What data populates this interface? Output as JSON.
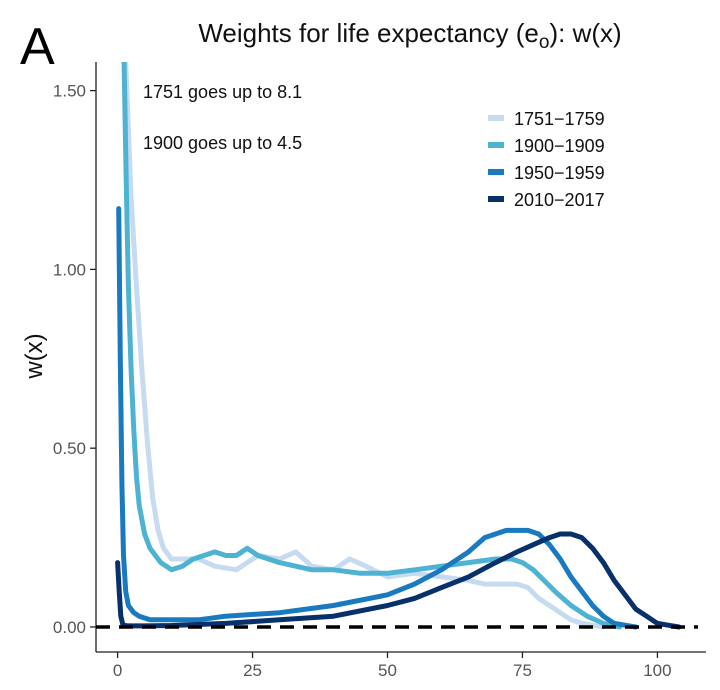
{
  "panel_label": "A",
  "chart_data": {
    "type": "line",
    "title_main": "Weights for life expectancy (e",
    "title_sub": "o",
    "title_tail": "): w(x)",
    "xlabel": "",
    "ylabel": "w(x)",
    "xlim": [
      -4,
      109
    ],
    "ylim": [
      -0.07,
      1.58
    ],
    "xticks": [
      0,
      25,
      50,
      75,
      100
    ],
    "yticks": [
      0.0,
      0.5,
      1.0,
      1.5
    ],
    "ytick_labels": [
      "0.00",
      "0.50",
      "1.00",
      "1.50"
    ],
    "grid": false,
    "legend_position": "top-right",
    "reference_line": {
      "y": 0,
      "style": "dashed",
      "color": "#000000"
    },
    "annotations": [
      "1751 goes up to 8.1",
      "1900 goes up to 4.5"
    ],
    "series": [
      {
        "name": "1751−1759",
        "color": "#c6dbef",
        "x": [
          1.5,
          2.5,
          3.5,
          4.5,
          5.5,
          6.5,
          7.5,
          8.5,
          10,
          12,
          15,
          18,
          22,
          26,
          30,
          33,
          36,
          40,
          43,
          46,
          50,
          55,
          60,
          65,
          68,
          70,
          72,
          74,
          76,
          78,
          80,
          82,
          84,
          86,
          88,
          90
        ],
        "y": [
          1.58,
          1.2,
          0.95,
          0.72,
          0.52,
          0.36,
          0.27,
          0.22,
          0.19,
          0.19,
          0.19,
          0.17,
          0.16,
          0.2,
          0.19,
          0.21,
          0.17,
          0.16,
          0.19,
          0.17,
          0.14,
          0.15,
          0.14,
          0.13,
          0.12,
          0.12,
          0.12,
          0.12,
          0.11,
          0.08,
          0.06,
          0.04,
          0.02,
          0.01,
          0.005,
          0.0
        ]
      },
      {
        "name": "1900−1909",
        "color": "#4eb3d3",
        "x": [
          1.2,
          1.6,
          2.0,
          2.5,
          3.0,
          3.5,
          4.0,
          5.0,
          6.0,
          7.0,
          8.0,
          10,
          12,
          14,
          16,
          18,
          20,
          22,
          24,
          26,
          30,
          33,
          36,
          40,
          45,
          50,
          55,
          60,
          65,
          70,
          73,
          75,
          77,
          79,
          81,
          84,
          87,
          90,
          93
        ],
        "y": [
          1.58,
          1.25,
          0.95,
          0.72,
          0.55,
          0.42,
          0.34,
          0.26,
          0.22,
          0.2,
          0.18,
          0.16,
          0.17,
          0.19,
          0.2,
          0.21,
          0.2,
          0.2,
          0.22,
          0.2,
          0.18,
          0.17,
          0.16,
          0.16,
          0.15,
          0.15,
          0.16,
          0.17,
          0.18,
          0.19,
          0.19,
          0.18,
          0.16,
          0.13,
          0.1,
          0.06,
          0.03,
          0.01,
          0.0
        ]
      },
      {
        "name": "1950−1959",
        "color": "#1a7ac0",
        "x": [
          0.2,
          0.5,
          0.8,
          1.1,
          1.5,
          2.0,
          3.0,
          4.0,
          6.0,
          10,
          15,
          20,
          30,
          40,
          50,
          55,
          60,
          65,
          68,
          70,
          72,
          74,
          76,
          78,
          80,
          82,
          84,
          86,
          88,
          90,
          92,
          94,
          96
        ],
        "y": [
          1.17,
          0.75,
          0.4,
          0.2,
          0.1,
          0.06,
          0.04,
          0.03,
          0.02,
          0.02,
          0.02,
          0.03,
          0.04,
          0.06,
          0.09,
          0.12,
          0.16,
          0.21,
          0.25,
          0.26,
          0.27,
          0.27,
          0.27,
          0.26,
          0.23,
          0.19,
          0.14,
          0.1,
          0.06,
          0.03,
          0.01,
          0.005,
          0.0
        ]
      },
      {
        "name": "2010−2017",
        "color": "#08306b",
        "x": [
          0.0,
          0.3,
          0.6,
          1.0,
          2.0,
          5,
          10,
          20,
          30,
          40,
          50,
          55,
          60,
          65,
          70,
          74,
          77,
          80,
          82,
          84,
          86,
          88,
          90,
          92,
          94,
          96,
          98,
          100,
          102,
          104
        ],
        "y": [
          0.18,
          0.1,
          0.03,
          0.005,
          0.003,
          0.003,
          0.004,
          0.01,
          0.02,
          0.03,
          0.06,
          0.08,
          0.11,
          0.14,
          0.18,
          0.21,
          0.23,
          0.25,
          0.26,
          0.26,
          0.25,
          0.22,
          0.18,
          0.13,
          0.09,
          0.05,
          0.03,
          0.01,
          0.005,
          0.0
        ]
      }
    ]
  }
}
